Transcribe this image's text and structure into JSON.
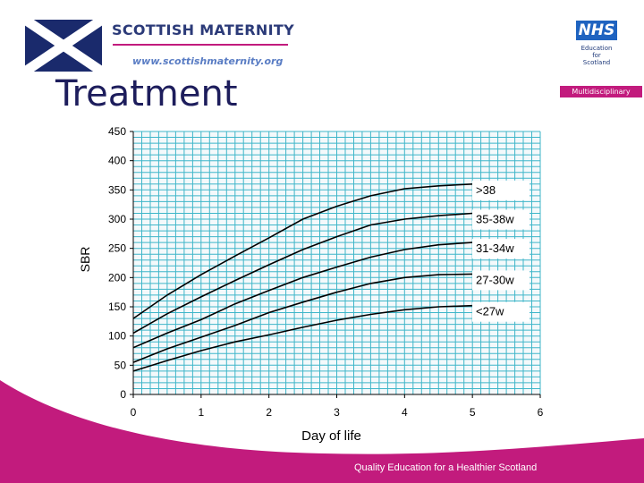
{
  "header": {
    "brand_name": "SCOTTISH MATERNITY",
    "brand_url": "www.scottishmaternity.org",
    "nhs_logo": "NHS",
    "nhs_sub": "Education\nfor\nScotland",
    "tag": "Multidisciplinary"
  },
  "slide": {
    "title": "Treatment"
  },
  "footer": {
    "text": "Quality Education for a Healthier Scotland"
  },
  "colors": {
    "plot_bg": "#f4f9fb",
    "gridline": "#3fb6c9",
    "series_line": "#000000",
    "label_box": "#ffffff",
    "title": "#1d1d5c",
    "accent": "#c21b7d",
    "brand_blue": "#2b3a78",
    "nhs_blue": "#1f63c0"
  },
  "icons": {
    "flag": "saltire-flag-icon"
  },
  "chart_data": {
    "type": "line",
    "title": "",
    "xlabel": "Day of life",
    "ylabel": "SBR",
    "xlim": [
      0,
      6
    ],
    "ylim": [
      0,
      450
    ],
    "x_ticks": [
      "0",
      "1",
      "2",
      "3",
      "4",
      "5",
      "6"
    ],
    "y_ticks": [
      "0",
      "50",
      "100",
      "150",
      "200",
      "250",
      "300",
      "350",
      "400",
      "450"
    ],
    "x_grid_step": 0.125,
    "y_grid_step": 10,
    "grid": true,
    "series": [
      {
        "name": ">38",
        "x": [
          0,
          0.5,
          1,
          1.5,
          2,
          2.5,
          3,
          3.5,
          4,
          4.5,
          5
        ],
        "y": [
          130,
          170,
          205,
          237,
          268,
          300,
          322,
          340,
          352,
          357,
          360
        ]
      },
      {
        "name": "35-38w",
        "x": [
          0,
          0.5,
          1,
          1.5,
          2,
          2.5,
          3,
          3.5,
          4,
          4.5,
          5
        ],
        "y": [
          105,
          138,
          167,
          195,
          222,
          248,
          270,
          290,
          300,
          306,
          310
        ]
      },
      {
        "name": "31-34w",
        "x": [
          0,
          0.5,
          1,
          1.5,
          2,
          2.5,
          3,
          3.5,
          4,
          4.5,
          5
        ],
        "y": [
          80,
          105,
          128,
          155,
          178,
          200,
          218,
          235,
          248,
          256,
          260
        ]
      },
      {
        "name": "27-30w",
        "x": [
          0,
          0.5,
          1,
          1.5,
          2,
          2.5,
          3,
          3.5,
          4,
          4.5,
          5
        ],
        "y": [
          55,
          78,
          98,
          118,
          140,
          158,
          175,
          190,
          200,
          205,
          206
        ]
      },
      {
        "name": "<27w",
        "x": [
          0,
          0.5,
          1,
          1.5,
          2,
          2.5,
          3,
          3.5,
          4,
          4.5,
          5
        ],
        "y": [
          40,
          58,
          75,
          90,
          102,
          115,
          127,
          137,
          145,
          150,
          152
        ]
      }
    ]
  }
}
